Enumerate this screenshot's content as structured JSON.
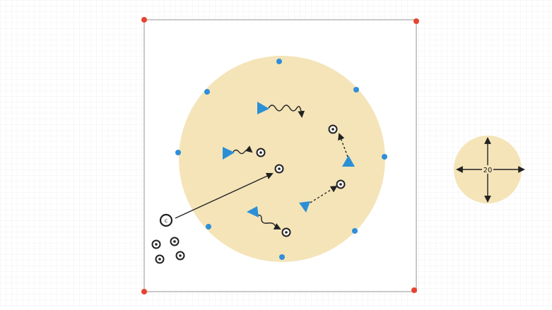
{
  "colors": {
    "page_bg": "#ffffff",
    "grid_line": "#f1f1f1",
    "field_border": "#c9c9c9",
    "field_fill": "#ffffff",
    "area_fill": "#f4e4b8",
    "corner_marker": "#e8422f",
    "perimeter_marker": "#2f8fd8",
    "player": "#2b8fd6",
    "ink": "#222222",
    "ball_fill": "#ffffff"
  },
  "icons": {
    "corner": "red-dot-icon",
    "perimeter": "blue-dot-icon",
    "player": "blue-triangle-icon",
    "ball": "soccer-ball-icon",
    "coach": "coach-circle-icon",
    "scale": "compass-arrows-icon"
  },
  "coach": {
    "label": "c"
  },
  "scale": {
    "label": "20"
  }
}
